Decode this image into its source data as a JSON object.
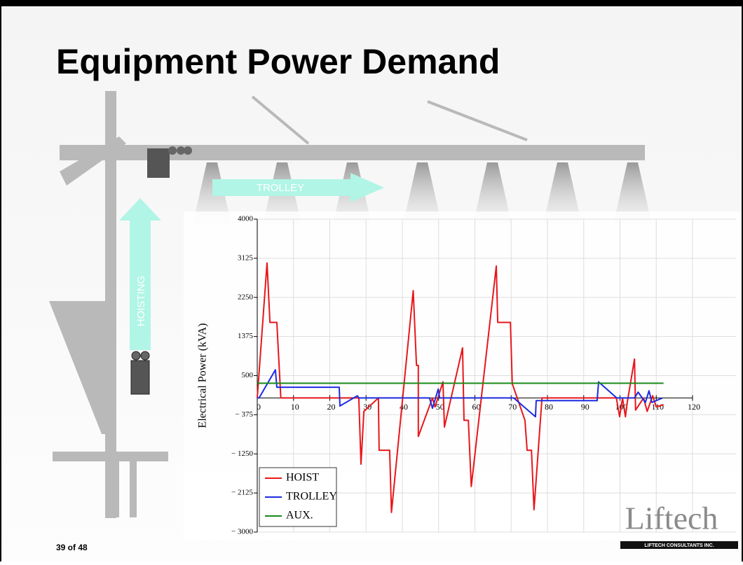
{
  "slide": {
    "title": "Equipment Power Demand",
    "page_number": "39 of 48",
    "trolley_label": "TROLLEY",
    "hoisting_label": "HOISTING",
    "logo": "Liftech",
    "logo_subtitle": "LIFTECH CONSULTANTS INC."
  },
  "chart_data": {
    "type": "line",
    "y_label": "Electrical Power (kVA)",
    "xlim": [
      0,
      120
    ],
    "xticks": [
      0,
      10,
      20,
      30,
      40,
      50,
      60,
      70,
      80,
      90,
      100,
      110,
      120
    ],
    "ylim": [
      -3000,
      4000
    ],
    "yticks": [
      {
        "value": -3000,
        "label": "− 3000"
      },
      {
        "value": -2125,
        "label": "− 2125"
      },
      {
        "value": -1250,
        "label": "− 1250"
      },
      {
        "value": -375,
        "label": "− 375"
      },
      500,
      1375,
      2250,
      3125,
      4000
    ],
    "grid": true,
    "legend": "lower left",
    "series": [
      {
        "name": "HOIST",
        "color": "#e8161b",
        "x": [
          0,
          2.7,
          3.5,
          5.4,
          6.5,
          28,
          28.6,
          29.4,
          33.4,
          33.6,
          36.5,
          37,
          43,
          43.9,
          44.4,
          44.4,
          48.3,
          49,
          51.2,
          51.6,
          56.6,
          57,
          58.2,
          59,
          65.9,
          66.3,
          69.8,
          70.3,
          73.8,
          74.4,
          75.6,
          76.3,
          78.5,
          99,
          99.9,
          100.7,
          101.5,
          102,
          104,
          104.3,
          106.5,
          107.5,
          109,
          110,
          112
        ],
        "values": [
          0,
          3020,
          1690,
          1690,
          0,
          0,
          -1480,
          -300,
          0,
          -1170,
          -1170,
          -2560,
          2400,
          730,
          730,
          -860,
          0,
          -200,
          360,
          -650,
          1120,
          -500,
          -500,
          -1980,
          2950,
          1690,
          1690,
          320,
          -500,
          -1170,
          -1170,
          -2500,
          0,
          0,
          -420,
          0,
          -420,
          -100,
          870,
          -270,
          0,
          -300,
          50,
          -200,
          -150
        ]
      },
      {
        "name": "TROLLEY",
        "color": "#1c2be0",
        "x": [
          0,
          0.5,
          5,
          5.4,
          22.6,
          22.8,
          27.6,
          28,
          47.5,
          48.3,
          49.9,
          50.3,
          70.7,
          76.7,
          76.9,
          93.7,
          94.1,
          99.1,
          104,
          105,
          107,
          108,
          108.8,
          111.7
        ],
        "values": [
          0,
          0,
          630,
          240,
          240,
          -180,
          50,
          0,
          0,
          -230,
          200,
          0,
          0,
          -420,
          -60,
          -60,
          360,
          0,
          0,
          130,
          -100,
          160,
          -100,
          0
        ]
      },
      {
        "name": "AUX.",
        "color": "#1a8a1a",
        "x": [
          0,
          112
        ],
        "values": [
          330,
          330
        ]
      }
    ]
  }
}
